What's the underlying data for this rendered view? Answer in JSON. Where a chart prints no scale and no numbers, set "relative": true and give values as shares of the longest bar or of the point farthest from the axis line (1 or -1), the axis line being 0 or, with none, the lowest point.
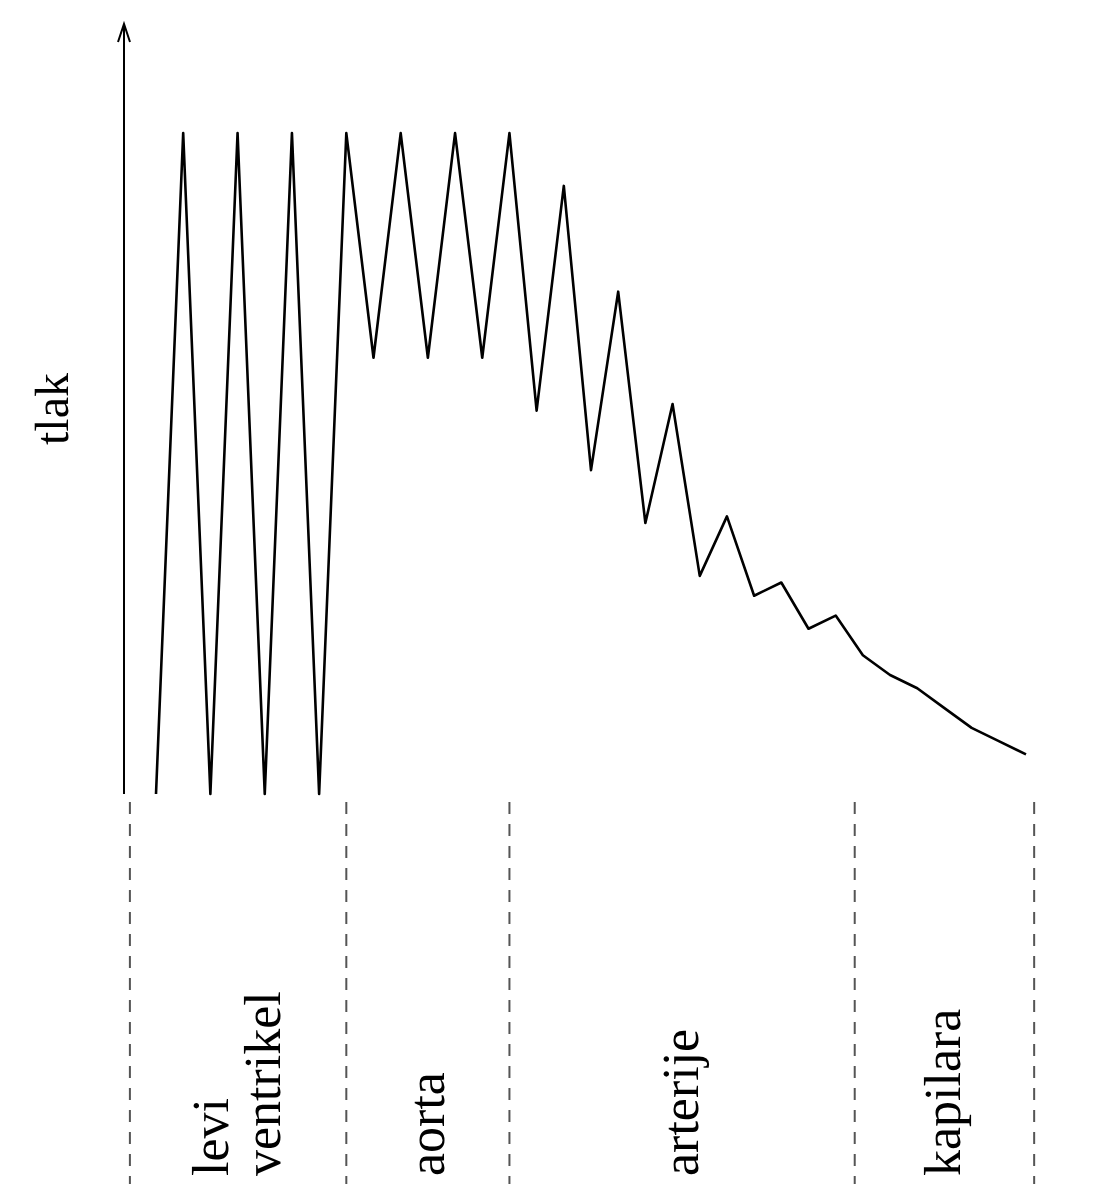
{
  "chart_data": {
    "type": "line",
    "relative": true,
    "ylabel": "tlak",
    "marker": "none",
    "line_style": "solid",
    "categories": [
      null,
      null,
      null,
      null,
      null,
      null,
      null,
      null,
      null,
      null,
      null,
      null,
      null,
      null,
      null,
      null,
      null,
      null,
      null,
      null,
      null,
      null,
      null,
      null,
      null,
      null,
      null,
      null,
      null,
      null,
      null,
      null,
      null
    ],
    "series": [
      {
        "color": "#000000",
        "values": [
          0,
          1,
          0,
          1,
          0,
          1,
          0,
          1,
          0.66,
          1,
          0.66,
          1,
          0.66,
          1,
          0.58,
          0.92,
          0.49,
          0.76,
          0.41,
          0.59,
          0.33,
          0.42,
          0.3,
          0.32,
          0.25,
          0.27,
          0.21,
          0.18,
          0.16,
          0.13,
          0.1,
          0.08,
          0.06
        ]
      }
    ],
    "annotations": [
      "levi ventrikel",
      "aorta",
      "arterije",
      "kapilara"
    ]
  }
}
